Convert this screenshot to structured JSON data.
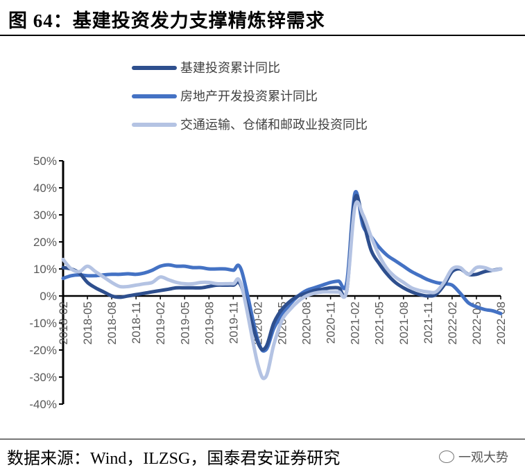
{
  "figure": {
    "title": "图 64：基建投资发力支撑精炼锌需求",
    "source": "数据来源：Wind，ILZSG，国泰君安证券研究",
    "watermark": "一观大势"
  },
  "chart_data": {
    "type": "line",
    "title": "",
    "xlabel": "",
    "ylabel": "",
    "ylim": [
      -40,
      50
    ],
    "y_ticks": [
      -40,
      -30,
      -20,
      -10,
      0,
      10,
      20,
      30,
      40,
      50
    ],
    "y_tick_format": "percent",
    "x_tick_labels": [
      "2018-02",
      "2018-05",
      "2018-08",
      "2018-11",
      "2019-02",
      "2019-05",
      "2019-08",
      "2019-11",
      "2020-02",
      "2020-05",
      "2020-08",
      "2020-11",
      "2021-02",
      "2021-05",
      "2021-08",
      "2021-11",
      "2022-02",
      "2022-05",
      "2022-08"
    ],
    "x_start": "2018-02",
    "x_end": "2022-08",
    "legend_placement": "top-left",
    "grid": false,
    "series": [
      {
        "name": "基建投资累计同比",
        "color": "#2e4f8e",
        "points": [
          [
            "2018-02",
            10.5
          ],
          [
            "2018-03",
            10
          ],
          [
            "2018-04",
            8.5
          ],
          [
            "2018-05",
            5
          ],
          [
            "2018-06",
            3
          ],
          [
            "2018-07",
            1.5
          ],
          [
            "2018-08",
            0
          ],
          [
            "2018-09",
            -0.5
          ],
          [
            "2018-10",
            0
          ],
          [
            "2018-11",
            0.5
          ],
          [
            "2018-12",
            1
          ],
          [
            "2019-01",
            1.5
          ],
          [
            "2019-02",
            2
          ],
          [
            "2019-03",
            2.5
          ],
          [
            "2019-04",
            3
          ],
          [
            "2019-05",
            3
          ],
          [
            "2019-06",
            3
          ],
          [
            "2019-07",
            3
          ],
          [
            "2019-08",
            3.5
          ],
          [
            "2019-09",
            4
          ],
          [
            "2019-10",
            4
          ],
          [
            "2019-11",
            4
          ],
          [
            "2019-12",
            3.5
          ],
          [
            "2020-02",
            -17
          ],
          [
            "2020-03",
            -19
          ],
          [
            "2020-04",
            -10
          ],
          [
            "2020-05",
            -5
          ],
          [
            "2020-06",
            -2
          ],
          [
            "2020-07",
            0
          ],
          [
            "2020-08",
            1
          ],
          [
            "2020-09",
            2
          ],
          [
            "2020-10",
            2.5
          ],
          [
            "2020-11",
            3
          ],
          [
            "2020-12",
            3
          ],
          [
            "2021-01",
            2
          ],
          [
            "2021-02",
            36
          ],
          [
            "2021-03",
            28
          ],
          [
            "2021-04",
            17
          ],
          [
            "2021-05",
            12
          ],
          [
            "2021-06",
            8
          ],
          [
            "2021-07",
            5
          ],
          [
            "2021-08",
            3
          ],
          [
            "2021-09",
            1.5
          ],
          [
            "2021-10",
            0.5
          ],
          [
            "2021-11",
            0
          ],
          [
            "2021-12",
            0.5
          ],
          [
            "2022-01",
            4
          ],
          [
            "2022-02",
            9
          ],
          [
            "2022-03",
            10
          ],
          [
            "2022-04",
            8
          ],
          [
            "2022-05",
            8
          ],
          [
            "2022-06",
            9
          ],
          [
            "2022-07",
            9.5
          ],
          [
            "2022-08",
            10
          ]
        ]
      },
      {
        "name": "房地产开发投资累计同比",
        "color": "#4472c4",
        "points": [
          [
            "2018-02",
            6.5
          ],
          [
            "2018-03",
            7.5
          ],
          [
            "2018-04",
            7.8
          ],
          [
            "2018-05",
            7.5
          ],
          [
            "2018-06",
            7.5
          ],
          [
            "2018-07",
            7.8
          ],
          [
            "2018-08",
            8
          ],
          [
            "2018-09",
            8
          ],
          [
            "2018-10",
            8.2
          ],
          [
            "2018-11",
            8
          ],
          [
            "2018-12",
            8.5
          ],
          [
            "2019-01",
            9.5
          ],
          [
            "2019-02",
            11
          ],
          [
            "2019-03",
            11.5
          ],
          [
            "2019-04",
            11
          ],
          [
            "2019-05",
            11
          ],
          [
            "2019-06",
            10.5
          ],
          [
            "2019-07",
            10.5
          ],
          [
            "2019-08",
            10
          ],
          [
            "2019-09",
            10
          ],
          [
            "2019-10",
            10
          ],
          [
            "2019-11",
            9.5
          ],
          [
            "2019-12",
            9.5
          ],
          [
            "2020-02",
            -16
          ],
          [
            "2020-03",
            -20
          ],
          [
            "2020-04",
            -12
          ],
          [
            "2020-05",
            -7
          ],
          [
            "2020-06",
            -3
          ],
          [
            "2020-07",
            0
          ],
          [
            "2020-08",
            2
          ],
          [
            "2020-09",
            3
          ],
          [
            "2020-10",
            4
          ],
          [
            "2020-11",
            5
          ],
          [
            "2020-12",
            5.5
          ],
          [
            "2021-01",
            5
          ],
          [
            "2021-02",
            38
          ],
          [
            "2021-03",
            26
          ],
          [
            "2021-04",
            22
          ],
          [
            "2021-05",
            18
          ],
          [
            "2021-06",
            15
          ],
          [
            "2021-07",
            13
          ],
          [
            "2021-08",
            11
          ],
          [
            "2021-09",
            9
          ],
          [
            "2021-10",
            7.5
          ],
          [
            "2021-11",
            6
          ],
          [
            "2021-12",
            5
          ],
          [
            "2022-01",
            4.5
          ],
          [
            "2022-02",
            4
          ],
          [
            "2022-03",
            1
          ],
          [
            "2022-04",
            -2.5
          ],
          [
            "2022-05",
            -4
          ],
          [
            "2022-06",
            -5
          ],
          [
            "2022-07",
            -5.5
          ],
          [
            "2022-08",
            -6.5
          ]
        ]
      },
      {
        "name": "交通运输、仓储和邮政业投资同比",
        "color": "#b4c3e3",
        "points": [
          [
            "2018-02",
            13.5
          ],
          [
            "2018-03",
            10
          ],
          [
            "2018-04",
            9
          ],
          [
            "2018-05",
            11
          ],
          [
            "2018-06",
            9
          ],
          [
            "2018-07",
            7
          ],
          [
            "2018-08",
            5
          ],
          [
            "2018-09",
            3.5
          ],
          [
            "2018-10",
            3.5
          ],
          [
            "2018-11",
            4
          ],
          [
            "2018-12",
            4.5
          ],
          [
            "2019-01",
            5
          ],
          [
            "2019-02",
            7
          ],
          [
            "2019-03",
            6
          ],
          [
            "2019-04",
            5
          ],
          [
            "2019-05",
            4.5
          ],
          [
            "2019-06",
            4.5
          ],
          [
            "2019-07",
            5
          ],
          [
            "2019-08",
            5
          ],
          [
            "2019-09",
            4.5
          ],
          [
            "2019-10",
            4.5
          ],
          [
            "2019-11",
            4.5
          ],
          [
            "2019-12",
            4
          ],
          [
            "2020-02",
            -25
          ],
          [
            "2020-03",
            -30
          ],
          [
            "2020-04",
            -18
          ],
          [
            "2020-05",
            -9
          ],
          [
            "2020-06",
            -5
          ],
          [
            "2020-07",
            -2
          ],
          [
            "2020-08",
            0
          ],
          [
            "2020-09",
            1
          ],
          [
            "2020-10",
            1.5
          ],
          [
            "2020-11",
            1.5
          ],
          [
            "2020-12",
            1.5
          ],
          [
            "2021-01",
            2
          ],
          [
            "2021-02",
            33
          ],
          [
            "2021-03",
            30
          ],
          [
            "2021-04",
            22
          ],
          [
            "2021-05",
            15
          ],
          [
            "2021-06",
            10
          ],
          [
            "2021-07",
            7
          ],
          [
            "2021-08",
            5
          ],
          [
            "2021-09",
            3
          ],
          [
            "2021-10",
            2
          ],
          [
            "2021-11",
            1.5
          ],
          [
            "2021-12",
            1.5
          ],
          [
            "2022-01",
            5
          ],
          [
            "2022-02",
            10
          ],
          [
            "2022-03",
            10.5
          ],
          [
            "2022-04",
            8
          ],
          [
            "2022-05",
            10.5
          ],
          [
            "2022-06",
            10.5
          ],
          [
            "2022-07",
            9.5
          ],
          [
            "2022-08",
            10
          ]
        ]
      }
    ]
  }
}
